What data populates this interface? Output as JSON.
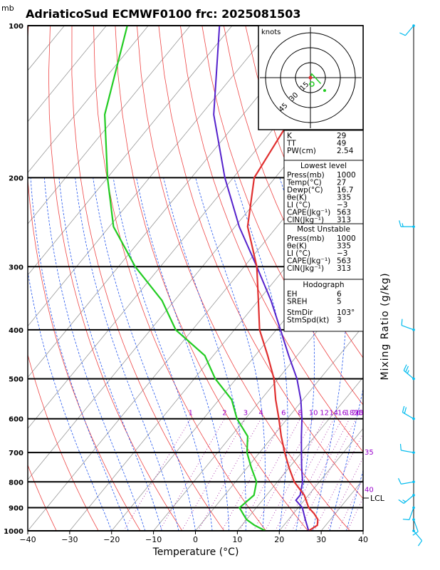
{
  "title": "AdriaticoSud ECMWF0100 frc: 2025081503",
  "pressure_unit": "mb",
  "xlabel": "Temperature (°C)",
  "right_label": "Mixing Ratio (g/kg)",
  "lcl_label": "LCL",
  "hodograph": {
    "units": "knots",
    "rings": [
      "15",
      "30",
      "45"
    ]
  },
  "indices": {
    "top": [
      {
        "label": "K",
        "value": "29"
      },
      {
        "label": "TT",
        "value": "49"
      },
      {
        "label": "PW(cm)",
        "value": "2.54"
      }
    ],
    "lowest": {
      "heading": "Lowest level",
      "rows": [
        {
          "label": "Press(mb)",
          "value": "1000"
        },
        {
          "label": "Temp(°C)",
          "value": "27"
        },
        {
          "label": "Dewp(°C)",
          "value": "16.7"
        },
        {
          "label": "θe(K)",
          "value": "335"
        },
        {
          "label": "LI (°C)",
          "value": "−3"
        },
        {
          "label": "CAPE(Jkg⁻¹)",
          "value": "563"
        },
        {
          "label": "CIN(Jkg⁻¹)",
          "value": "313"
        }
      ]
    },
    "unstable": {
      "heading": "Most Unstable",
      "rows": [
        {
          "label": "Press(mb)",
          "value": "1000"
        },
        {
          "label": "θe(K)",
          "value": "335"
        },
        {
          "label": "LI (°C)",
          "value": "−3"
        },
        {
          "label": "CAPE(Jkg⁻¹)",
          "value": "563"
        },
        {
          "label": "CIN(Jkg⁻¹)",
          "value": "313"
        }
      ]
    },
    "hodo": {
      "heading": "Hodograph",
      "rows": [
        {
          "label": "EH",
          "value": "6"
        },
        {
          "label": "SREH",
          "value": "5"
        },
        {
          "label": "StmDir",
          "value": "103°"
        },
        {
          "label": "StmSpd(kt)",
          "value": "3"
        }
      ]
    }
  },
  "colors": {
    "temperature": "#e03030",
    "dewpoint": "#22cc22",
    "parcel": "#5522cc",
    "isotherm": "#999999",
    "dry_adiabat": "#ee4444",
    "moist_adiabat": "#2255ee",
    "mixing_ratio": "#aa33aa",
    "wind": "#00bbee"
  },
  "chart_data": {
    "type": "skew-t",
    "xlim": [
      -40,
      40
    ],
    "pressure_range": [
      1000,
      100
    ],
    "xticks": [
      "−40",
      "−30",
      "−20",
      "−10",
      "0",
      "10",
      "20",
      "30",
      "40"
    ],
    "pressure_ticks": [
      "100",
      "200",
      "300",
      "400",
      "500",
      "600",
      "700",
      "800",
      "900",
      "1000"
    ],
    "mixing_ratio_labels": [
      "1",
      "2",
      "3",
      "4",
      "6",
      "8",
      "10",
      "12",
      "14",
      "16",
      "18",
      "20",
      "25",
      "30",
      "35",
      "40"
    ],
    "temperature": {
      "p": [
        1000,
        975,
        950,
        925,
        900,
        850,
        800,
        750,
        700,
        650,
        600,
        550,
        500,
        450,
        400,
        350,
        300,
        250,
        200,
        150,
        100
      ],
      "t": [
        27,
        28,
        27,
        25,
        22.5,
        19,
        14,
        10,
        6,
        2,
        -2,
        -6.5,
        -11,
        -17,
        -24,
        -30,
        -37,
        -47,
        -55,
        -58,
        -57
      ]
    },
    "dewpoint": {
      "p": [
        1000,
        975,
        950,
        925,
        900,
        850,
        800,
        750,
        700,
        650,
        600,
        550,
        500,
        450,
        400,
        350,
        300,
        250,
        200,
        150,
        100
      ],
      "t": [
        16.7,
        13,
        10,
        8,
        6,
        7,
        5,
        1,
        -3,
        -6,
        -12,
        -17,
        -25,
        -32,
        -44,
        -53,
        -66,
        -79,
        -90,
        -103,
        -115
      ]
    },
    "parcel": {
      "p": [
        1000,
        950,
        900,
        870,
        850,
        800,
        750,
        700,
        650,
        600,
        550,
        500,
        450,
        400,
        350,
        300,
        250,
        200,
        150,
        100
      ],
      "t": [
        27,
        24,
        21,
        18,
        18,
        16,
        13,
        10,
        6.8,
        3.5,
        -0.5,
        -5.5,
        -12,
        -19,
        -27,
        -37,
        -49,
        -62,
        -77,
        -93
      ]
    },
    "hodograph_points": [
      {
        "speed": 0,
        "dir": 0
      },
      {
        "speed": 4,
        "dir": 200
      },
      {
        "speed": 12,
        "dir": 300
      }
    ],
    "wind_levels": [
      {
        "p": 100,
        "spd": 10,
        "dir": 220
      },
      {
        "p": 250,
        "spd": 5,
        "dir": 270
      },
      {
        "p": 400,
        "spd": 10,
        "dir": 290
      },
      {
        "p": 500,
        "spd": 15,
        "dir": 310
      },
      {
        "p": 600,
        "spd": 20,
        "dir": 300
      },
      {
        "p": 700,
        "spd": 10,
        "dir": 280
      },
      {
        "p": 800,
        "spd": 10,
        "dir": 260
      },
      {
        "p": 850,
        "spd": 5,
        "dir": 230
      },
      {
        "p": 900,
        "spd": 10,
        "dir": 200
      },
      {
        "p": 950,
        "spd": 10,
        "dir": 160
      },
      {
        "p": 1000,
        "spd": 10,
        "dir": 140
      }
    ]
  }
}
